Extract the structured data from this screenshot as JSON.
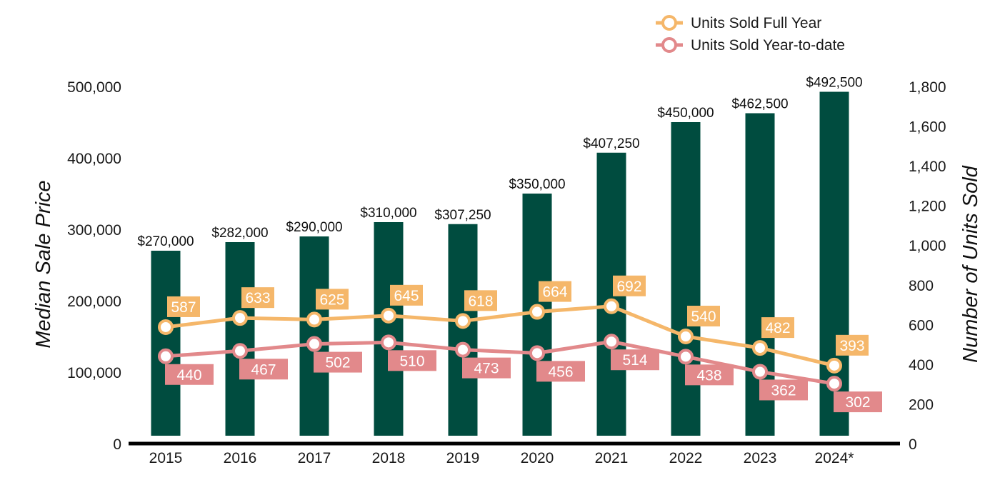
{
  "chart_data": {
    "type": "bar",
    "categories": [
      "2015",
      "2016",
      "2017",
      "2018",
      "2019",
      "2020",
      "2021",
      "2022",
      "2023",
      "2024*"
    ],
    "y_left": {
      "label": "Median Sale Price",
      "min": 0,
      "max": 500000,
      "ticks": [
        0,
        100000,
        200000,
        300000,
        400000,
        500000
      ],
      "tick_labels": [
        "0",
        "100,000",
        "200,000",
        "300,000",
        "400,000",
        "500,000"
      ]
    },
    "y_right": {
      "label": "Number of Units Sold",
      "min": 0,
      "max": 1800,
      "ticks": [
        0,
        200,
        400,
        600,
        800,
        1000,
        1200,
        1400,
        1600,
        1800
      ],
      "tick_labels": [
        "0",
        "200",
        "400",
        "600",
        "800",
        "1,000",
        "1,200",
        "1,400",
        "1,600",
        "1,800"
      ]
    },
    "bar_series": {
      "values": [
        270000,
        282000,
        290000,
        310000,
        307250,
        350000,
        407250,
        450000,
        462500,
        492500
      ],
      "labels": [
        "$270,000",
        "$282,000",
        "$290,000",
        "$310,000",
        "$307,250",
        "$350,000",
        "$407,250",
        "$450,000",
        "$462,500",
        "$492,500"
      ],
      "color": "#004c3f",
      "axis": "left"
    },
    "line_series": [
      {
        "name": "Units Sold Full Year",
        "values": [
          587,
          633,
          625,
          645,
          618,
          664,
          692,
          540,
          482,
          393
        ],
        "color": "#f5b76a",
        "axis": "right",
        "label_position": "above"
      },
      {
        "name": "Units Sold Year-to-date",
        "values": [
          440,
          467,
          502,
          510,
          473,
          456,
          514,
          438,
          362,
          302
        ],
        "color": "#e2898b",
        "axis": "right",
        "label_position": "below"
      }
    ],
    "legend": {
      "position": "top-right"
    },
    "grid": false
  }
}
